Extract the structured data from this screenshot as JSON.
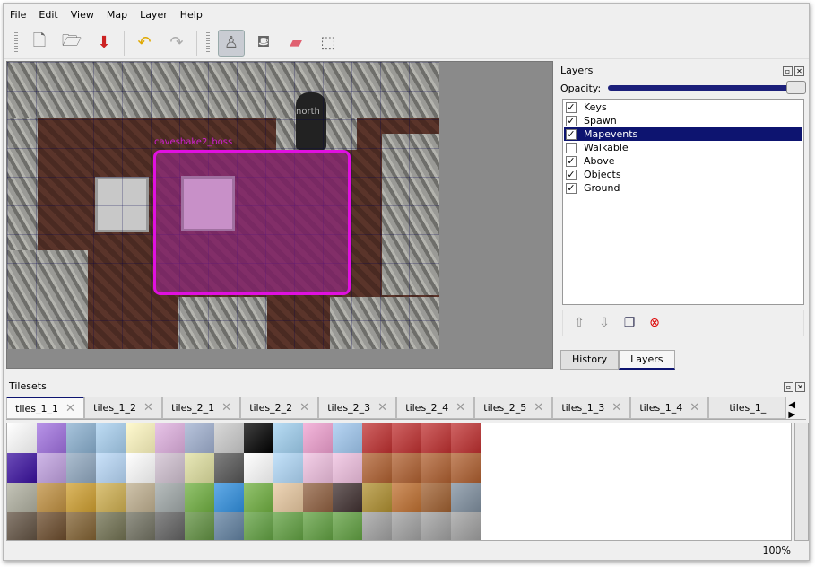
{
  "menu": [
    "File",
    "Edit",
    "View",
    "Map",
    "Layer",
    "Help"
  ],
  "toolbar": [
    {
      "name": "new-icon",
      "glyph": "🗋"
    },
    {
      "name": "open-icon",
      "glyph": "🗁"
    },
    {
      "name": "save-icon",
      "glyph": "⬇"
    },
    {
      "name": "undo-icon",
      "glyph": "↶"
    },
    {
      "name": "redo-icon",
      "glyph": "↷"
    },
    {
      "name": "stamp-brush-icon",
      "glyph": "♙",
      "active": true
    },
    {
      "name": "bucket-fill-icon",
      "glyph": "⛾"
    },
    {
      "name": "eraser-icon",
      "glyph": "▰"
    },
    {
      "name": "rect-select-icon",
      "glyph": "⬚"
    }
  ],
  "map": {
    "labels": {
      "boss": "caveshake2_boss",
      "north": "north"
    },
    "selection_color": "#e010e0"
  },
  "layers_panel": {
    "title": "Layers",
    "opacity_label": "Opacity:",
    "opacity": 1.0,
    "layers": [
      {
        "name": "Keys",
        "visible": true
      },
      {
        "name": "Spawn",
        "visible": true
      },
      {
        "name": "Mapevents",
        "visible": true,
        "selected": true
      },
      {
        "name": "Walkable",
        "visible": false
      },
      {
        "name": "Above",
        "visible": true
      },
      {
        "name": "Objects",
        "visible": true
      },
      {
        "name": "Ground",
        "visible": true
      }
    ],
    "tabs": [
      "History",
      "Layers"
    ],
    "active_tab": "Layers"
  },
  "tilesets": {
    "title": "Tilesets",
    "tabs": [
      "tiles_1_1",
      "tiles_1_2",
      "tiles_2_1",
      "tiles_2_2",
      "tiles_2_3",
      "tiles_2_4",
      "tiles_2_5",
      "tiles_1_3",
      "tiles_1_4",
      "tiles_1_"
    ],
    "active": "tiles_1_1"
  },
  "status": {
    "zoom": "100%"
  },
  "colors": {
    "accent": "#0d1470"
  }
}
